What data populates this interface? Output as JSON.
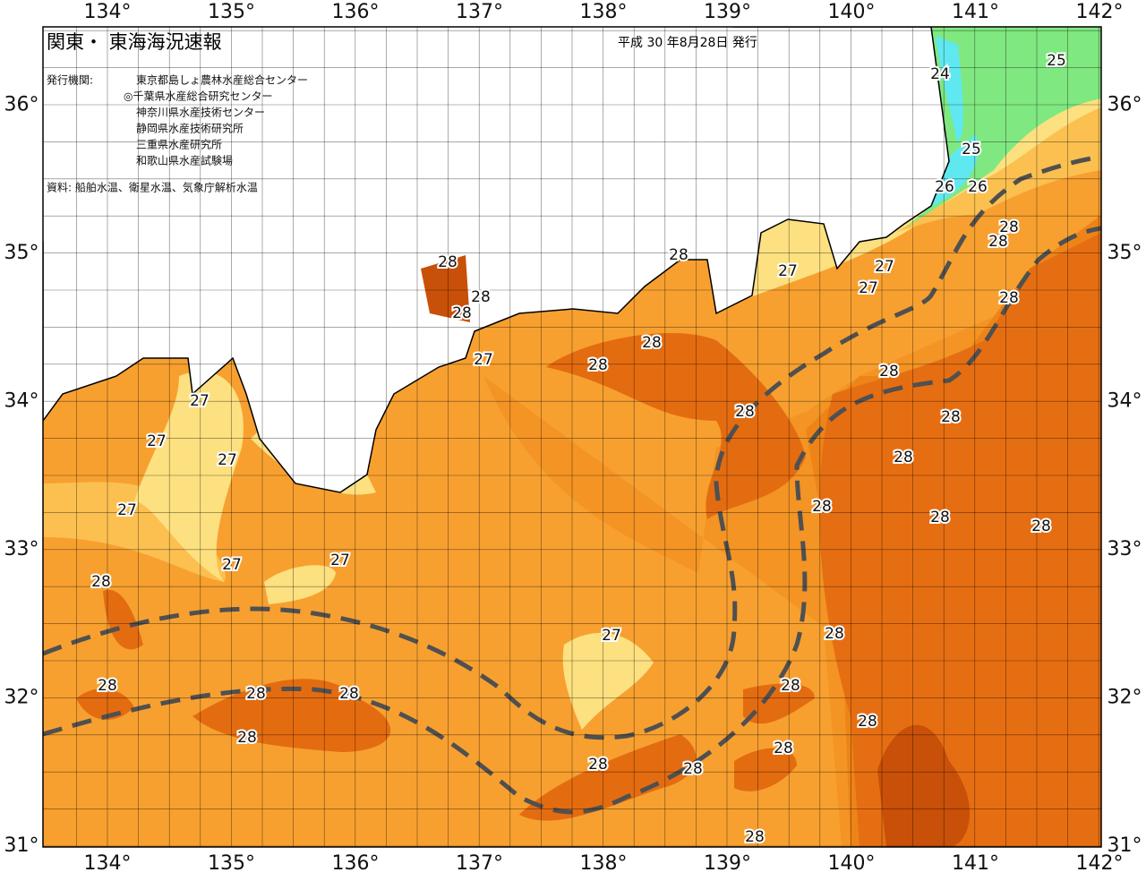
{
  "header": {
    "title": "関東・ 東海海況速報",
    "issue_date": "平成 30 年8月28日 発行",
    "issuer_label": "発行機関:",
    "issuers": [
      "東京都島しょ農林水産総合センター",
      "◎千葉県水産総合研究センター",
      "神奈川県水産技術センター",
      "静岡県水産技術研究所",
      "三重県水産研究所",
      "和歌山県水産試験場"
    ],
    "source": "資料: 船舶水温、衛星水温、気象庁解析水温"
  },
  "map": {
    "lon_labels": [
      "134°",
      "135°",
      "136°",
      "137°",
      "138°",
      "139°",
      "140°",
      "141°",
      "142°"
    ],
    "lat_labels": [
      "31°",
      "32°",
      "33°",
      "34°",
      "35°",
      "36°"
    ],
    "contour_labels": [
      "24",
      "25",
      "25",
      "26",
      "26",
      "28",
      "28",
      "27",
      "27",
      "27",
      "28",
      "28",
      "28",
      "28",
      "27",
      "28",
      "28",
      "28",
      "28",
      "28",
      "28",
      "27",
      "27",
      "27",
      "28",
      "28",
      "28",
      "28",
      "27",
      "27",
      "27",
      "28",
      "27",
      "28",
      "28",
      "28",
      "28",
      "28",
      "28",
      "28",
      "28",
      "28",
      "28",
      "28"
    ]
  }
}
